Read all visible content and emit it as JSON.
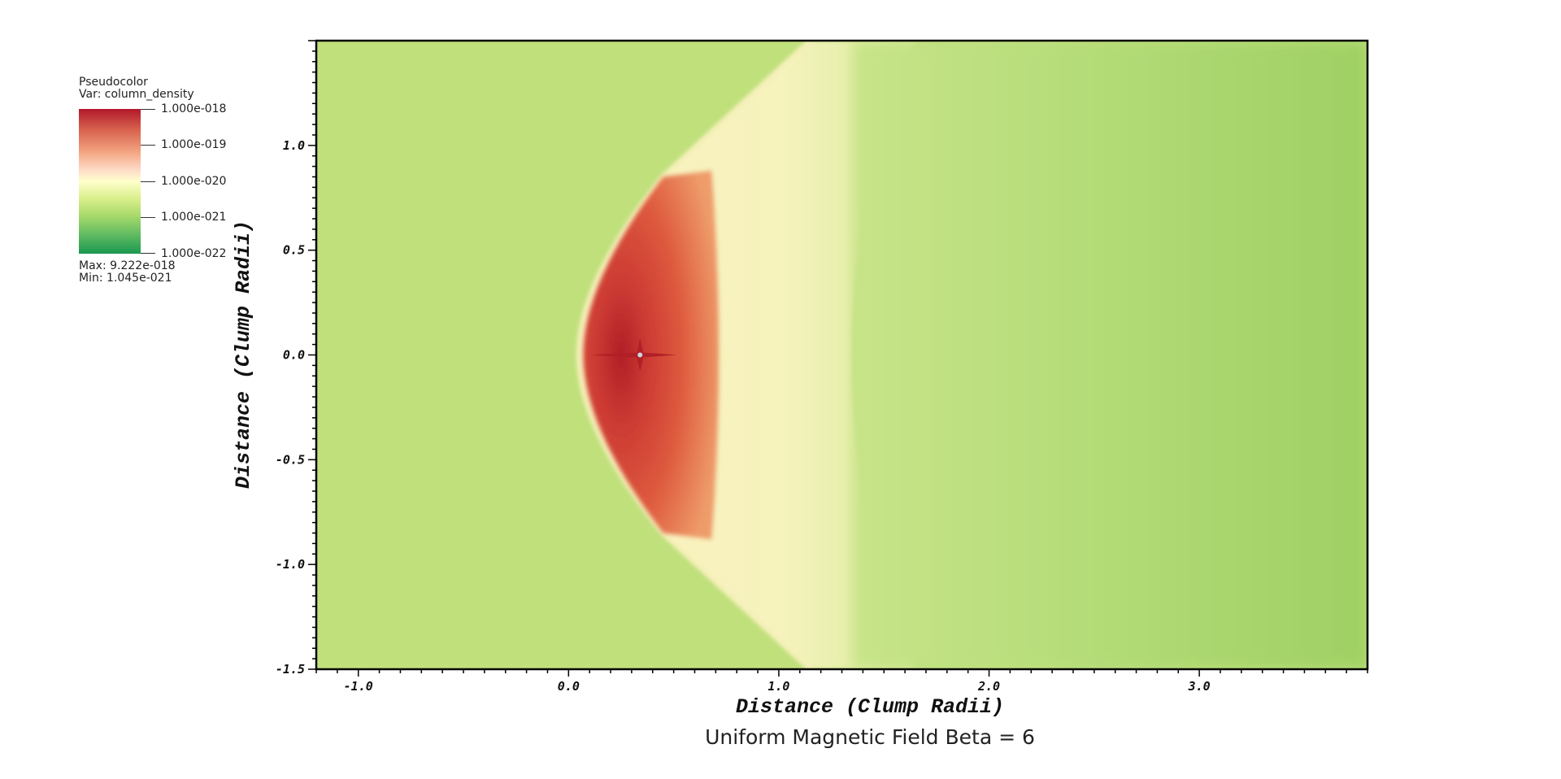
{
  "legend": {
    "plot_type": "Pseudocolor",
    "var_label": "Var: column_density",
    "ticks": [
      "1.000e-018",
      "1.000e-019",
      "1.000e-020",
      "1.000e-021",
      "1.000e-022"
    ],
    "max_label": "Max:  9.222e-018",
    "min_label": "Min:  1.045e-021",
    "colors": [
      "#b2182b",
      "#f4a582",
      "#ffffcc",
      "#a6d96a",
      "#1a9850"
    ]
  },
  "chart_data": {
    "type": "heatmap",
    "title": "Uniform Magnetic Field Beta = 6",
    "xlabel": "Distance (Clump Radii)",
    "ylabel": "Distance (Clump Radii)",
    "xlim": [
      -1.2,
      3.8
    ],
    "ylim": [
      -1.5,
      1.5
    ],
    "x_ticks": [
      "-1.0",
      "0.0",
      "1.0",
      "2.0",
      "3.0"
    ],
    "x_tick_values": [
      -1.0,
      0.0,
      1.0,
      2.0,
      3.0
    ],
    "y_ticks": [
      "1.0",
      "0.5",
      "0.0",
      "-0.5",
      "-1.0",
      "-1.5"
    ],
    "y_tick_values": [
      1.0,
      0.5,
      0.0,
      -0.5,
      -1.0,
      -1.5
    ],
    "variable": "column_density",
    "color_scale": "log",
    "range": [
      1e-22,
      1e-18
    ],
    "data_max": 9.222e-18,
    "data_min": 1.045e-21,
    "colors": {
      "ambient": "#c0e07c",
      "shock_front": "#fff3c4",
      "dense_clump": "#de5a3e",
      "clump_core": "#b11f27",
      "wake": "#acd66e",
      "sheath": "#f7f2bd"
    }
  }
}
